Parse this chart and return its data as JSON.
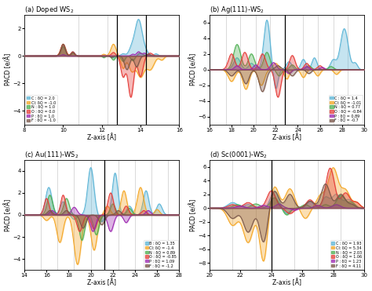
{
  "panels": [
    {
      "title": "(a) Doped WS$_2$",
      "xlabel": "Z-axis [Å]",
      "ylabel": "PACD [e/Å]",
      "xlim": [
        8,
        16
      ],
      "ylim": [
        -5,
        3
      ],
      "yticks": [
        -4,
        -2,
        0,
        2
      ],
      "xticks": [
        8,
        10,
        12,
        14,
        16
      ],
      "vlines_gray": [
        10.8,
        12.3
      ],
      "vlines_black": [
        12.8,
        14.3
      ],
      "legend_loc": "lower left",
      "legend": [
        {
          "label": "C : δQ = 2.0",
          "color": "#5ab4d6"
        },
        {
          "label": "Cl: δQ = -1.0",
          "color": "#f5a623"
        },
        {
          "label": "N : δQ = 1.0",
          "color": "#4caf50"
        },
        {
          "label": "O : δQ = 0.0",
          "color": "#e53935"
        },
        {
          "label": "P : δQ = 1.0",
          "color": "#9c27b0"
        },
        {
          "label": "F : δQ = -1.0",
          "color": "#795548"
        }
      ],
      "curves": [
        [
          [
            10.0,
            0.12,
            0.7
          ],
          [
            10.5,
            0.1,
            0.3
          ],
          [
            12.1,
            0.06,
            -0.1
          ],
          [
            12.6,
            0.07,
            -0.15
          ],
          [
            13.1,
            0.1,
            0.15
          ],
          [
            13.55,
            0.15,
            0.55
          ],
          [
            13.9,
            0.18,
            2.6
          ],
          [
            14.25,
            0.15,
            0.3
          ],
          [
            14.8,
            0.1,
            0.15
          ]
        ],
        [
          [
            10.0,
            0.12,
            0.85
          ],
          [
            10.5,
            0.09,
            0.25
          ],
          [
            12.1,
            0.08,
            0.12
          ],
          [
            12.6,
            0.13,
            0.85
          ],
          [
            13.1,
            0.11,
            -0.9
          ],
          [
            13.55,
            0.16,
            -1.1
          ],
          [
            14.0,
            0.18,
            -1.5
          ],
          [
            14.5,
            0.2,
            -1.0
          ],
          [
            15.1,
            0.12,
            -0.3
          ]
        ],
        [
          [
            10.0,
            0.11,
            0.65
          ],
          [
            10.5,
            0.09,
            0.22
          ],
          [
            12.1,
            0.08,
            -0.12
          ],
          [
            12.6,
            0.09,
            -0.3
          ],
          [
            13.1,
            0.1,
            -0.4
          ],
          [
            13.6,
            0.1,
            -0.35
          ],
          [
            14.0,
            0.12,
            0.2
          ]
        ],
        [
          [
            10.0,
            0.12,
            0.85
          ],
          [
            10.5,
            0.09,
            0.3
          ],
          [
            12.6,
            0.1,
            0.25
          ],
          [
            13.1,
            0.12,
            -1.5
          ],
          [
            13.5,
            0.14,
            -3.0
          ],
          [
            14.0,
            0.13,
            -1.5
          ],
          [
            14.5,
            0.12,
            0.2
          ]
        ],
        [
          [
            10.0,
            0.08,
            0.1
          ],
          [
            13.6,
            0.08,
            0.12
          ],
          [
            13.9,
            0.1,
            0.3
          ],
          [
            14.2,
            0.1,
            0.2
          ]
        ],
        [
          [
            10.0,
            0.11,
            0.85
          ],
          [
            10.5,
            0.08,
            0.25
          ],
          [
            12.5,
            0.07,
            -0.12
          ],
          [
            13.3,
            0.13,
            -1.0
          ],
          [
            13.8,
            0.12,
            -0.8
          ],
          [
            14.4,
            0.1,
            0.12
          ]
        ]
      ]
    },
    {
      "title": "(b) Ag(111)-WS$_2$",
      "xlabel": "Z-axis [Å]",
      "ylabel": "PACD [e/Å]",
      "xlim": [
        16,
        30
      ],
      "ylim": [
        -7,
        7
      ],
      "yticks": [
        -6,
        -4,
        -2,
        0,
        2,
        4,
        6
      ],
      "xticks": [
        16,
        18,
        20,
        22,
        24,
        26,
        28,
        30
      ],
      "vlines_gray": [
        17.5,
        18.8,
        20.2,
        21.5,
        24.5,
        25.8,
        27.2,
        28.5
      ],
      "vlines_black": [
        22.8
      ],
      "legend_loc": "lower right",
      "legend": [
        {
          "label": "C : δQ = 1.4",
          "color": "#5ab4d6"
        },
        {
          "label": "Cl: δQ = -1.01",
          "color": "#f5a623"
        },
        {
          "label": "N : δQ = 0.77",
          "color": "#4caf50"
        },
        {
          "label": "O : δQ = -0.84",
          "color": "#e53935"
        },
        {
          "label": "P : δQ = 0.89",
          "color": "#9c27b0"
        },
        {
          "label": "F : δQ = -0.7",
          "color": "#795548"
        }
      ],
      "curves": [
        [
          [
            18.5,
            0.3,
            1.5
          ],
          [
            19.8,
            0.25,
            0.8
          ],
          [
            21.2,
            0.28,
            6.3
          ],
          [
            22.0,
            0.2,
            -2.5
          ],
          [
            23.2,
            0.25,
            1.0
          ],
          [
            24.5,
            0.22,
            1.3
          ],
          [
            25.5,
            0.22,
            1.5
          ],
          [
            27.2,
            0.25,
            1.2
          ],
          [
            28.2,
            0.35,
            5.2
          ],
          [
            29.2,
            0.2,
            0.8
          ]
        ],
        [
          [
            18.0,
            0.3,
            -1.5
          ],
          [
            19.3,
            0.28,
            -2.5
          ],
          [
            20.7,
            0.28,
            -2.0
          ],
          [
            22.0,
            0.25,
            0.8
          ],
          [
            23.0,
            0.22,
            -1.2
          ],
          [
            24.5,
            0.22,
            -1.0
          ],
          [
            25.8,
            0.22,
            -0.8
          ],
          [
            27.5,
            0.22,
            -0.6
          ]
        ],
        [
          [
            18.5,
            0.32,
            3.2
          ],
          [
            19.8,
            0.28,
            2.0
          ],
          [
            21.2,
            0.28,
            2.2
          ],
          [
            22.3,
            0.22,
            -0.8
          ],
          [
            23.5,
            0.22,
            0.6
          ],
          [
            25.0,
            0.22,
            0.5
          ],
          [
            27.0,
            0.22,
            0.4
          ]
        ],
        [
          [
            18.0,
            0.28,
            2.0
          ],
          [
            19.2,
            0.28,
            2.2
          ],
          [
            20.8,
            0.28,
            2.0
          ],
          [
            22.2,
            0.25,
            -3.5
          ],
          [
            23.5,
            0.25,
            1.8
          ],
          [
            24.8,
            0.22,
            0.8
          ],
          [
            26.0,
            0.22,
            0.5
          ]
        ],
        [
          [
            18.5,
            0.22,
            0.5
          ],
          [
            20.2,
            0.22,
            0.6
          ],
          [
            21.8,
            0.25,
            0.9
          ],
          [
            23.2,
            0.22,
            -0.5
          ],
          [
            24.8,
            0.22,
            0.4
          ],
          [
            26.2,
            0.2,
            0.3
          ]
        ],
        [
          [
            18.0,
            0.28,
            -0.8
          ],
          [
            19.3,
            0.28,
            -1.8
          ],
          [
            20.8,
            0.3,
            -2.8
          ],
          [
            22.2,
            0.25,
            0.5
          ],
          [
            23.5,
            0.25,
            -0.8
          ],
          [
            25.0,
            0.22,
            -0.5
          ]
        ]
      ]
    },
    {
      "title": "(c) Au(111)-WS$_2$",
      "xlabel": "Z-axis [Å]",
      "ylabel": "PACD [e/Å]",
      "xlim": [
        14,
        28
      ],
      "ylim": [
        -5,
        5
      ],
      "yticks": [
        -4,
        -2,
        0,
        2,
        4
      ],
      "xticks": [
        14,
        16,
        18,
        20,
        22,
        24,
        26,
        28
      ],
      "vlines_gray": [
        15.5,
        17.0,
        18.5,
        20.0,
        22.5,
        24.0,
        25.5,
        27.0
      ],
      "vlines_black": [
        21.2
      ],
      "legend_loc": "lower right",
      "legend": [
        {
          "label": "B : δQ = 1.35",
          "color": "#5ab4d6"
        },
        {
          "label": "Cl: δQ = -1.4",
          "color": "#f5a623"
        },
        {
          "label": "N : δQ = 0.89",
          "color": "#4caf50"
        },
        {
          "label": "O : δQ = -0.85",
          "color": "#e53935"
        },
        {
          "label": "P : δQ = 1.09",
          "color": "#9c27b0"
        },
        {
          "label": "F : δQ = -1.2",
          "color": "#795548"
        }
      ],
      "curves": [
        [
          [
            16.2,
            0.28,
            2.5
          ],
          [
            17.5,
            0.25,
            1.2
          ],
          [
            18.5,
            0.22,
            -0.4
          ],
          [
            20.0,
            0.28,
            4.3
          ],
          [
            21.0,
            0.22,
            -0.6
          ],
          [
            22.2,
            0.25,
            3.8
          ],
          [
            23.5,
            0.25,
            0.8
          ],
          [
            25.0,
            0.25,
            2.2
          ],
          [
            26.2,
            0.25,
            1.0
          ]
        ],
        [
          [
            16.0,
            0.25,
            -0.5
          ],
          [
            17.2,
            0.28,
            -2.5
          ],
          [
            18.8,
            0.32,
            -4.5
          ],
          [
            20.3,
            0.28,
            -3.2
          ],
          [
            21.5,
            0.25,
            0.8
          ],
          [
            23.0,
            0.25,
            2.2
          ],
          [
            24.5,
            0.28,
            2.5
          ],
          [
            26.0,
            0.22,
            0.5
          ]
        ],
        [
          [
            16.3,
            0.25,
            1.8
          ],
          [
            17.8,
            0.25,
            1.5
          ],
          [
            19.2,
            0.25,
            -2.3
          ],
          [
            20.5,
            0.25,
            -1.8
          ],
          [
            22.0,
            0.22,
            1.0
          ],
          [
            23.5,
            0.22,
            0.6
          ]
        ],
        [
          [
            16.0,
            0.22,
            1.5
          ],
          [
            17.5,
            0.22,
            1.8
          ],
          [
            19.0,
            0.25,
            -1.5
          ],
          [
            20.3,
            0.25,
            -1.3
          ],
          [
            21.8,
            0.25,
            2.0
          ],
          [
            23.2,
            0.22,
            0.8
          ],
          [
            24.8,
            0.22,
            0.4
          ]
        ],
        [
          [
            16.5,
            0.22,
            0.4
          ],
          [
            18.5,
            0.25,
            0.7
          ],
          [
            20.2,
            0.25,
            -1.5
          ],
          [
            21.8,
            0.25,
            -1.5
          ],
          [
            23.2,
            0.22,
            -0.7
          ],
          [
            25.2,
            0.22,
            0.4
          ]
        ],
        [
          [
            16.3,
            0.22,
            0.4
          ],
          [
            17.8,
            0.22,
            0.4
          ],
          [
            19.3,
            0.25,
            -1.2
          ],
          [
            21.0,
            0.25,
            -0.9
          ],
          [
            22.5,
            0.22,
            0.4
          ]
        ]
      ]
    },
    {
      "title": "(d) Sc(0001)-WS$_2$",
      "xlabel": "Z-axis [Å]",
      "ylabel": "PACD [e/Å]",
      "xlim": [
        20,
        30
      ],
      "ylim": [
        -9,
        7
      ],
      "yticks": [
        -8,
        -6,
        -4,
        -2,
        0,
        2,
        4,
        6
      ],
      "xticks": [
        20,
        22,
        24,
        26,
        28,
        30
      ],
      "vlines_gray": [
        21.5,
        23.0,
        25.5,
        27.0,
        28.5
      ],
      "vlines_black": [
        24.0
      ],
      "legend_loc": "lower right",
      "legend": [
        {
          "label": "C : δQ = 1.93",
          "color": "#5ab4d6"
        },
        {
          "label": "Cl: δQ = 5.34",
          "color": "#f5a623"
        },
        {
          "label": "N : δQ = 2.03",
          "color": "#4caf50"
        },
        {
          "label": "O : δQ = 1.06",
          "color": "#e53935"
        },
        {
          "label": "P : δQ = 1.23",
          "color": "#9c27b0"
        },
        {
          "label": "F : δQ = 4.11",
          "color": "#795548"
        }
      ],
      "curves": [
        [
          [
            21.5,
            0.3,
            0.8
          ],
          [
            22.5,
            0.28,
            0.5
          ],
          [
            24.2,
            0.25,
            2.5
          ],
          [
            25.0,
            0.2,
            -0.8
          ],
          [
            26.5,
            0.22,
            1.0
          ],
          [
            27.5,
            0.22,
            1.5
          ],
          [
            28.2,
            0.3,
            2.0
          ],
          [
            29.0,
            0.25,
            1.2
          ]
        ],
        [
          [
            21.5,
            0.32,
            -2.5
          ],
          [
            22.5,
            0.32,
            -5.0
          ],
          [
            23.5,
            0.25,
            -7.8
          ],
          [
            24.2,
            0.28,
            3.2
          ],
          [
            25.2,
            0.28,
            2.8
          ],
          [
            26.2,
            0.25,
            -1.5
          ],
          [
            27.2,
            0.28,
            1.8
          ],
          [
            28.0,
            0.32,
            5.8
          ],
          [
            28.8,
            0.28,
            2.5
          ],
          [
            29.5,
            0.22,
            0.8
          ]
        ],
        [
          [
            21.8,
            0.28,
            0.5
          ],
          [
            23.0,
            0.28,
            0.6
          ],
          [
            24.2,
            0.25,
            1.5
          ],
          [
            25.0,
            0.22,
            -1.0
          ],
          [
            26.2,
            0.22,
            0.5
          ],
          [
            27.5,
            0.22,
            0.5
          ],
          [
            28.5,
            0.28,
            1.8
          ],
          [
            29.2,
            0.22,
            0.8
          ]
        ],
        [
          [
            21.5,
            0.28,
            0.5
          ],
          [
            22.5,
            0.28,
            0.8
          ],
          [
            24.0,
            0.28,
            2.5
          ],
          [
            25.2,
            0.25,
            -0.8
          ],
          [
            26.5,
            0.25,
            1.2
          ],
          [
            27.8,
            0.28,
            5.8
          ],
          [
            28.8,
            0.28,
            2.2
          ],
          [
            29.5,
            0.22,
            0.8
          ]
        ],
        [
          [
            22.0,
            0.25,
            0.3
          ],
          [
            23.5,
            0.25,
            0.4
          ],
          [
            24.5,
            0.22,
            0.6
          ],
          [
            25.5,
            0.2,
            -0.3
          ],
          [
            27.0,
            0.22,
            0.4
          ],
          [
            28.2,
            0.25,
            0.5
          ]
        ],
        [
          [
            21.5,
            0.3,
            -1.5
          ],
          [
            22.5,
            0.3,
            -3.5
          ],
          [
            23.5,
            0.25,
            -5.0
          ],
          [
            24.2,
            0.28,
            2.5
          ],
          [
            25.2,
            0.25,
            2.0
          ],
          [
            26.5,
            0.25,
            1.0
          ],
          [
            27.5,
            0.28,
            3.5
          ],
          [
            28.5,
            0.28,
            2.0
          ],
          [
            29.2,
            0.22,
            0.5
          ]
        ]
      ]
    }
  ]
}
